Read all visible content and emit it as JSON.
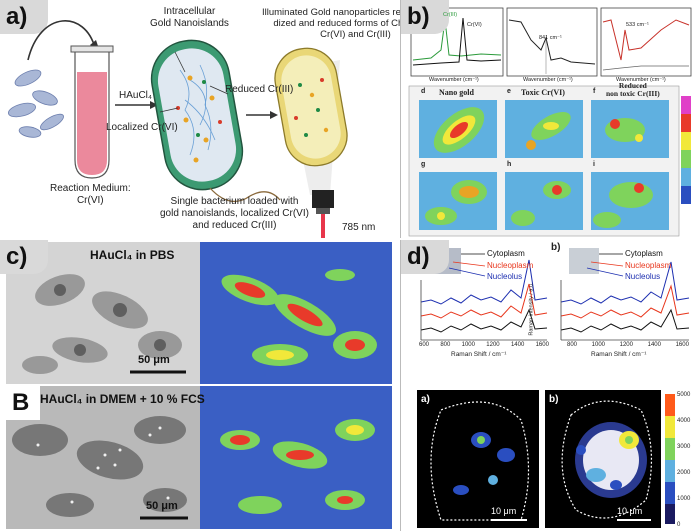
{
  "panel_a": {
    "label": "a)",
    "intracellular": "Intracellular\nGold Nanoislands",
    "illuminated": "Illuminated Gold nanoparticles revealing oxi-\ndized and reduced forms of Chromium:\nCr(VI) and Cr(III)",
    "haucl4": "HAuCl₄",
    "reduced": "Reduced Cr(III)",
    "localized": "Localized Cr(VI)",
    "medium": "Reaction Medium:\nCr(VI)",
    "single": "Single bacterium loaded with\ngold nanoislands, localized Cr(VI)\nand reduced Cr(III)",
    "laser": "785 nm"
  },
  "panel_b": {
    "label": "b)",
    "spec1_legend": [
      "Cr(III)",
      "Cr(VI)"
    ],
    "spec2_peak": "841 cm⁻¹",
    "spec3_peak": "533 cm⁻¹",
    "xlabel": "Wavenumber (cm⁻¹)",
    "map_titles": [
      "Nano gold",
      "Toxic Cr(VI)",
      "Reduced\nnon toxic Cr(III)"
    ],
    "map_letters": [
      "d",
      "e",
      "f",
      "g",
      "h",
      "i"
    ]
  },
  "panel_c": {
    "label": "c)",
    "top_caption": "HAuCl₄ in PBS",
    "top_scale": "50 μm",
    "bottom_label": "B",
    "bottom_caption": "HAuCl₄ in DMEM + 10 % FCS",
    "bottom_scale": "50 μm"
  },
  "panel_d": {
    "label": "d)",
    "sub_a": "a)",
    "sub_b": "b)",
    "legend": [
      "Cytoplasm",
      "Nucleoplasm",
      "Nucleolus"
    ],
    "legend_colors": [
      "#111111",
      "#e8361c",
      "#1d2fb0"
    ],
    "ylabel": "Raman intensity / a.u.",
    "xlabel": "Raman Shift / cm⁻¹",
    "ticks_left": [
      "600",
      "800",
      "1000",
      "1200",
      "1400",
      "1600"
    ],
    "ticks_right": [
      "800",
      "1000",
      "1200",
      "1400",
      "1600"
    ],
    "colorbar_ticks": [
      "5000",
      "4000",
      "3000",
      "2000",
      "1000",
      "0"
    ],
    "scale_a": "10 μm",
    "scale_b": "10 μm"
  }
}
